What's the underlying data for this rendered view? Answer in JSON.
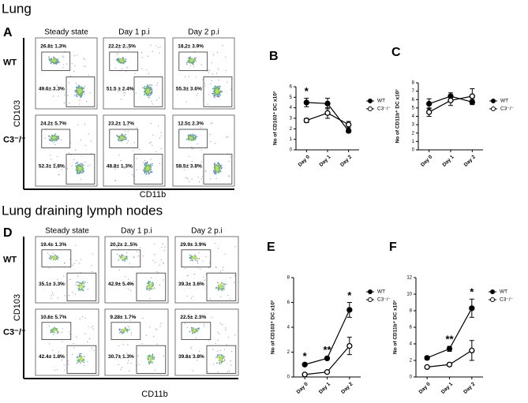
{
  "flow": [
    {
      "section": "Lung",
      "label": "A",
      "columns": [
        "Steady state",
        "Day 1 p.i",
        "Day 2 p.i"
      ],
      "rows": [
        "WT",
        "C3⁻/⁻"
      ],
      "y_label": "CD103",
      "x_label": "CD11b",
      "gates": [
        [
          [
            "26.8± 1.3%",
            "49.6± 3.3%"
          ],
          [
            "22.2± 2..5%",
            "51.5 ± 2.4%"
          ],
          [
            "18.2± 3.9%",
            "55.3± 3.6%"
          ]
        ],
        [
          [
            "24.2± 5.7%",
            "52.3± 1.8%"
          ],
          [
            "23.2± 1.7%",
            "48.8± 1.3%"
          ],
          [
            "12.5± 2.3%",
            "58.5± 3.8%"
          ]
        ]
      ]
    },
    {
      "section": "Lung draining lymph nodes",
      "label": "D",
      "columns": [
        "Steady state",
        "Day 1 p.i",
        "Day 2 p.i"
      ],
      "rows": [
        "WT",
        "C3⁻/⁻"
      ],
      "y_label": "CD103",
      "x_label": "CD11b",
      "gates": [
        [
          [
            "19.4± 1.3%",
            "35.1± 3.3%"
          ],
          [
            "20.2± 2..5%",
            "42.9± 5.4%"
          ],
          [
            "29.9± 3.9%",
            "39.3± 3.6%"
          ]
        ],
        [
          [
            "10.6± 5.7%",
            "42.4± 1.8%"
          ],
          [
            "9.28± 1.7%",
            "30.7± 1.3%"
          ],
          [
            "22.5± 2.3%",
            "39.8± 3.8%"
          ]
        ]
      ]
    }
  ],
  "chart_data": [
    {
      "type": "line",
      "label": "B",
      "y_label": "No of CD103⁺ DC x10³",
      "categories": [
        "Day 0",
        "Day 1",
        "Day 2"
      ],
      "ylim": [
        0,
        6
      ],
      "yticks": [
        0,
        1,
        2,
        3,
        4,
        5,
        6
      ],
      "significance": [
        "*",
        null,
        null
      ],
      "series": [
        {
          "name": "WT",
          "color": "#000000",
          "values": [
            4.5,
            4.4,
            1.8
          ],
          "errors": [
            0.4,
            0.5,
            0.15
          ]
        },
        {
          "name": "C3⁻/⁻",
          "color": "#000000",
          "values": [
            2.8,
            3.5,
            2.4
          ],
          "errors": [
            0.2,
            0.5,
            0.3
          ]
        }
      ]
    },
    {
      "type": "line",
      "label": "C",
      "y_label": "No of CD11b⁺ DC x10³",
      "categories": [
        "Day 0",
        "Day 1",
        "Day 2"
      ],
      "ylim": [
        0,
        8
      ],
      "yticks": [
        0,
        1,
        2,
        3,
        4,
        5,
        6,
        7,
        8
      ],
      "significance": [
        null,
        null,
        null
      ],
      "series": [
        {
          "name": "WT",
          "color": "#000000",
          "values": [
            5.5,
            6.4,
            5.7
          ],
          "errors": [
            0.6,
            0.4,
            0.3
          ]
        },
        {
          "name": "C3⁻/⁻",
          "color": "#000000",
          "values": [
            4.5,
            5.9,
            6.4
          ],
          "errors": [
            0.5,
            0.6,
            0.9
          ]
        }
      ]
    },
    {
      "type": "line",
      "label": "E",
      "y_label": "No of CD103⁺ DC x10³",
      "categories": [
        "Day 0",
        "Day 1",
        "Day 2"
      ],
      "ylim": [
        0,
        8
      ],
      "yticks": [
        0,
        2,
        4,
        6,
        8
      ],
      "significance": [
        "*",
        "**",
        "*"
      ],
      "series": [
        {
          "name": "WT",
          "color": "#000000",
          "values": [
            1.0,
            1.5,
            5.4
          ],
          "errors": [
            0.1,
            0.1,
            0.6
          ]
        },
        {
          "name": "C3⁻/⁻",
          "color": "#000000",
          "values": [
            0.2,
            0.4,
            2.5
          ],
          "errors": [
            0.05,
            0.1,
            0.7
          ]
        }
      ]
    },
    {
      "type": "line",
      "label": "F",
      "y_label": "No of CD11b⁺ DC x10³",
      "categories": [
        "Day 0",
        "Day 1",
        "Day 2"
      ],
      "ylim": [
        0,
        12
      ],
      "yticks": [
        0,
        2,
        4,
        6,
        8,
        10,
        12
      ],
      "significance": [
        null,
        "**",
        "*"
      ],
      "series": [
        {
          "name": "WT",
          "color": "#000000",
          "values": [
            2.3,
            3.4,
            8.3
          ],
          "errors": [
            0.2,
            0.3,
            1.1
          ]
        },
        {
          "name": "C3⁻/⁻",
          "color": "#000000",
          "values": [
            1.2,
            1.5,
            3.2
          ],
          "errors": [
            0.1,
            0.2,
            1.2
          ]
        }
      ]
    }
  ]
}
